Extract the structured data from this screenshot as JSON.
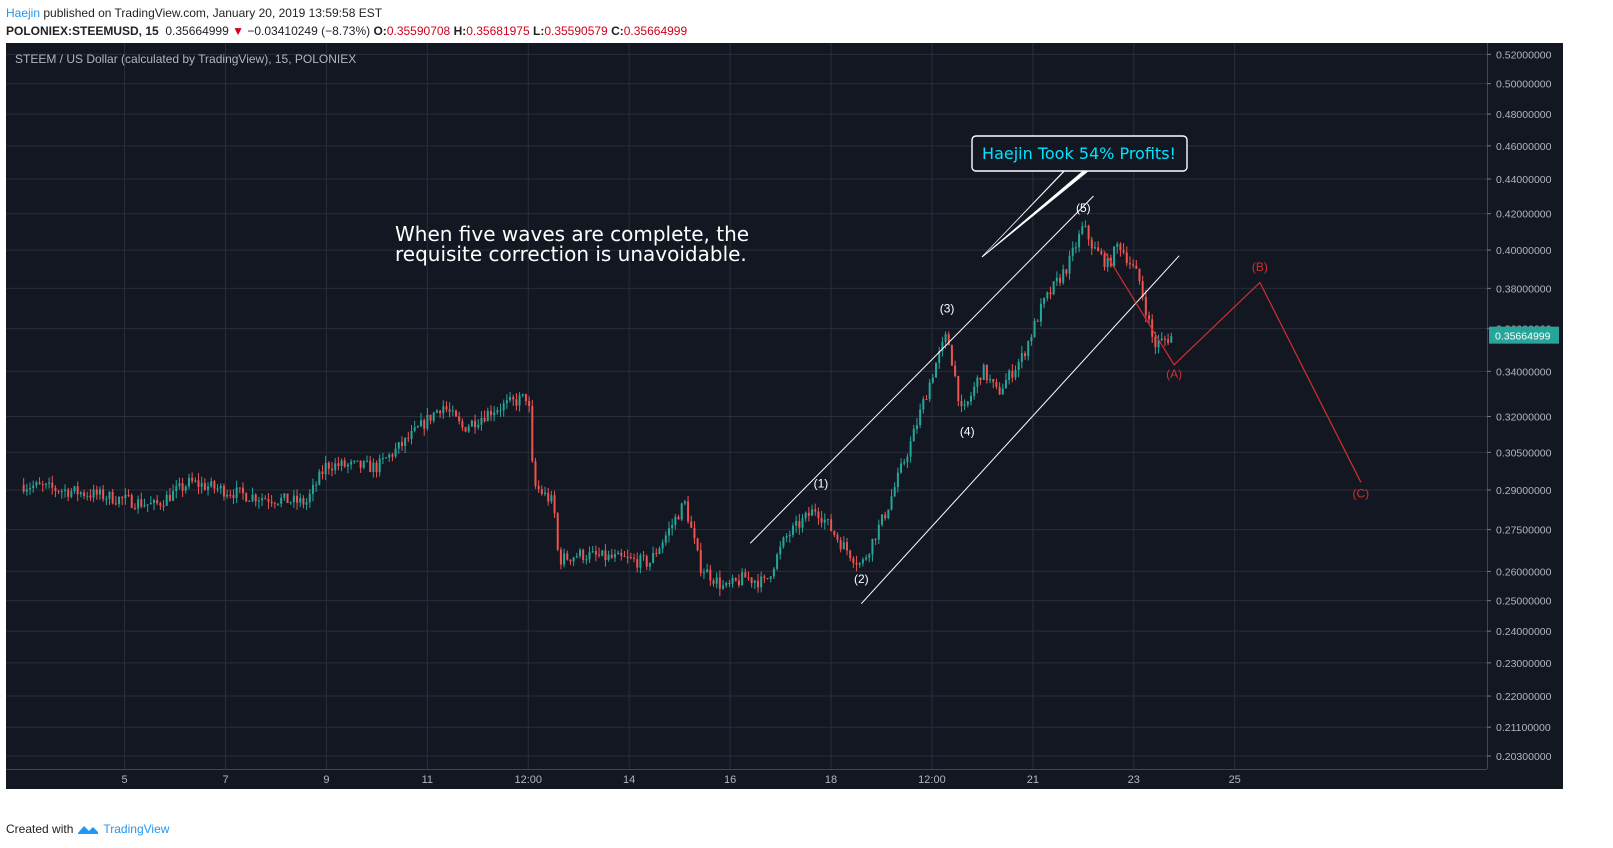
{
  "header": {
    "author": "Haejin",
    "published_text": " published on TradingView.com, January 20, 2019 13:59:58 EST",
    "symbol": "POLONIEX:STEEMUSD, 15",
    "price": "0.35664999",
    "change_arrow": "▼",
    "change": "−0.03410249 (−8.73%)",
    "o_label": "O:",
    "o_value": "0.35590708",
    "h_label": "H:",
    "h_value": "0.35681975",
    "l_label": "L:",
    "l_value": "0.35590579",
    "c_label": "C:",
    "c_value": "0.35664999"
  },
  "footer": {
    "created_with": "Created with",
    "brand": "TradingView"
  },
  "colors": {
    "background": "#131722",
    "grid": "#2a2e39",
    "up": "#26a69a",
    "down": "#ef5350",
    "axis_text": "#b2b5be",
    "text": "#ffffff",
    "projection": "#d32f2f",
    "annotation_text": "#00e5ff",
    "price_tag": "#26a69a"
  },
  "chart_data": {
    "type": "candlestick",
    "title": "STEEM / US Dollar (calculated by TradingView), 15, POLONIEX",
    "x_ticks": [
      "5",
      "7",
      "9",
      "11",
      "12:00",
      "14",
      "16",
      "18",
      "12:00",
      "21",
      "23",
      "25"
    ],
    "y_ticks": [
      "0.52000000",
      "0.50000000",
      "0.48000000",
      "0.46000000",
      "0.44000000",
      "0.42000000",
      "0.40000000",
      "0.38000000",
      "0.36000000",
      "0.34000000",
      "0.32000000",
      "0.30500000",
      "0.29000000",
      "0.27500000",
      "0.26000000",
      "0.25000000",
      "0.24000000",
      "0.23000000",
      "0.22000000",
      "0.21100000",
      "0.20300000"
    ],
    "y_scale": "log",
    "last_price": "0.35664999",
    "price_path": [
      [
        0.0,
        0.292
      ],
      [
        1.5,
        0.288
      ],
      [
        2.6,
        0.284
      ],
      [
        3.3,
        0.293
      ],
      [
        4.4,
        0.288
      ],
      [
        5.6,
        0.285
      ],
      [
        6.0,
        0.3
      ],
      [
        7.0,
        0.299
      ],
      [
        7.6,
        0.31
      ],
      [
        8.3,
        0.325
      ],
      [
        8.7,
        0.315
      ],
      [
        9.3,
        0.323
      ],
      [
        9.8,
        0.327
      ],
      [
        10.0,
        0.329
      ],
      [
        10.1,
        0.292
      ],
      [
        10.5,
        0.285
      ],
      [
        10.6,
        0.264
      ],
      [
        11.0,
        0.266
      ],
      [
        12.0,
        0.264
      ],
      [
        12.4,
        0.263
      ],
      [
        12.7,
        0.272
      ],
      [
        13.1,
        0.285
      ],
      [
        13.4,
        0.262
      ],
      [
        13.9,
        0.254
      ],
      [
        14.3,
        0.258
      ],
      [
        14.7,
        0.256
      ],
      [
        15.1,
        0.272
      ],
      [
        15.7,
        0.283
      ],
      [
        16.2,
        0.27
      ],
      [
        16.6,
        0.262
      ],
      [
        17.1,
        0.282
      ],
      [
        17.6,
        0.31
      ],
      [
        18.1,
        0.345
      ],
      [
        18.3,
        0.357
      ],
      [
        18.6,
        0.32
      ],
      [
        19.0,
        0.341
      ],
      [
        19.3,
        0.33
      ],
      [
        19.8,
        0.347
      ],
      [
        20.2,
        0.372
      ],
      [
        20.4,
        0.38
      ],
      [
        20.7,
        0.392
      ],
      [
        21.0,
        0.413
      ],
      [
        21.2,
        0.401
      ],
      [
        21.5,
        0.392
      ],
      [
        21.7,
        0.404
      ],
      [
        22.1,
        0.385
      ],
      [
        22.4,
        0.352
      ],
      [
        22.8,
        0.357
      ]
    ],
    "channel": {
      "upper": [
        [
          14.4,
          0.27
        ],
        [
          21.2,
          0.43
        ]
      ],
      "lower": [
        [
          16.6,
          0.249
        ],
        [
          22.9,
          0.397
        ]
      ]
    },
    "wave_labels": [
      {
        "text": "(1)",
        "x": 15.8,
        "y": 0.291
      },
      {
        "text": "(2)",
        "x": 16.6,
        "y": 0.256
      },
      {
        "text": "(3)",
        "x": 18.3,
        "y": 0.368
      },
      {
        "text": "(4)",
        "x": 18.7,
        "y": 0.312
      },
      {
        "text": "(5)",
        "x": 21.0,
        "y": 0.421
      }
    ],
    "projection": {
      "points": [
        [
          21.4,
          0.4
        ],
        [
          22.8,
          0.343
        ],
        [
          24.5,
          0.383
        ],
        [
          26.5,
          0.293
        ]
      ],
      "labels": [
        {
          "text": "(A)",
          "x": 22.8,
          "y": 0.337
        },
        {
          "text": "(B)",
          "x": 24.5,
          "y": 0.389
        },
        {
          "text": "(C)",
          "x": 26.5,
          "y": 0.287
        }
      ]
    },
    "annotations": {
      "note_line1": "When five waves are complete, the",
      "note_line2": "requisite correction is unavoidable.",
      "callout": "Haejin Took 54% Profits!"
    }
  }
}
